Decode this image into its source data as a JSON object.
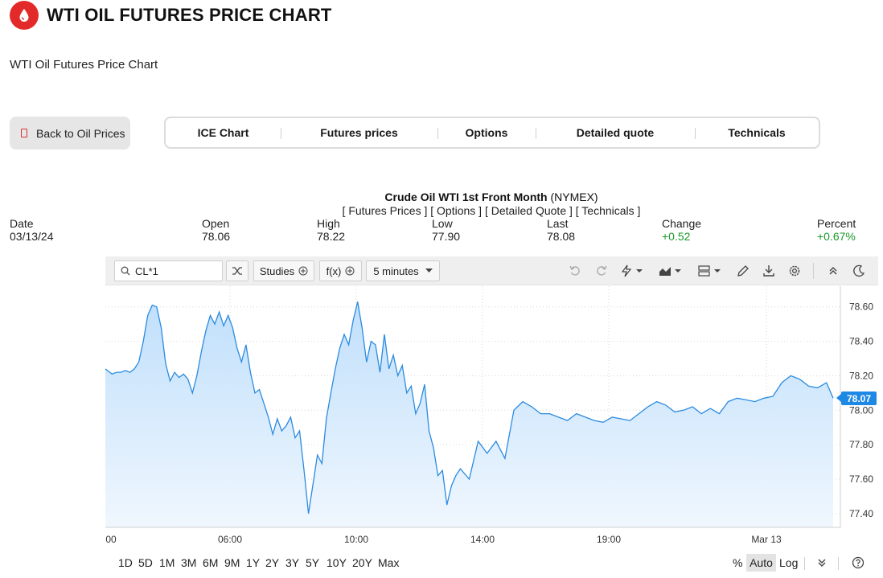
{
  "header": {
    "title": "WTI OIL FUTURES PRICE CHART",
    "subtitle": "WTI Oil Futures Price Chart",
    "logo_icon": "oil-drop-icon"
  },
  "back_button": {
    "label": "Back to Oil Prices",
    "icon": "document-icon"
  },
  "tabs": [
    {
      "label": "ICE Chart"
    },
    {
      "label": "Futures prices"
    },
    {
      "label": "Options"
    },
    {
      "label": "Detailed quote"
    },
    {
      "label": "Technicals"
    }
  ],
  "instrument": {
    "name": "Crude Oil WTI 1st Front Month",
    "exchange": "(NYMEX)",
    "links": "[ Futures Prices ] [ Options ] [ Detailed Quote ] [ Technicals ]"
  },
  "quote": {
    "date_label": "Date",
    "date": "03/13/24",
    "open_label": "Open",
    "open": "78.06",
    "high_label": "High",
    "high": "78.22",
    "low_label": "Low",
    "low": "77.90",
    "last_label": "Last",
    "last": "78.08",
    "change_label": "Change",
    "change": "+0.52",
    "percent_label": "Percent",
    "percent": "+0.67%"
  },
  "toolbar": {
    "symbol": "CL*1",
    "studies_label": "Studies",
    "fx_label": "f(x)",
    "interval_label": "5 minutes"
  },
  "colors": {
    "accent": "#1e88e5",
    "brand": "#e32a2a",
    "positive": "#1a9a2a"
  },
  "chart_data": {
    "type": "area",
    "title": "",
    "xlabel": "",
    "ylabel": "",
    "ylim": [
      77.32,
      78.72
    ],
    "y_ticks": [
      "78.60",
      "78.40",
      "78.20",
      "78.00",
      "77.80",
      "77.60",
      "77.40"
    ],
    "x_ticks": [
      "00",
      "06:00",
      "10:00",
      "14:00",
      "19:00",
      "Mar 13"
    ],
    "last_value": "78.07",
    "x": [
      0,
      0.3,
      0.5,
      0.7,
      0.9,
      1.1,
      1.3,
      1.5,
      1.7,
      1.9,
      2.1,
      2.3,
      2.5,
      2.7,
      2.9,
      3.1,
      3.3,
      3.5,
      3.7,
      3.9,
      4.1,
      4.3,
      4.5,
      4.7,
      4.9,
      5.1,
      5.3,
      5.5,
      5.7,
      5.9,
      6.1,
      6.3,
      6.5,
      6.7,
      6.9,
      7.1,
      7.3,
      7.5,
      7.7,
      7.9,
      8.1,
      8.3,
      8.5,
      8.7,
      8.9,
      9.1,
      9.3,
      9.5,
      9.7,
      9.9,
      10.1,
      10.3,
      10.5,
      10.7,
      10.9,
      11.1,
      11.3,
      11.5,
      11.7,
      11.9,
      12.1,
      12.3,
      12.5,
      12.7,
      12.9,
      13.1,
      13.3,
      13.5,
      13.7,
      13.9,
      14.1,
      14.3,
      14.5,
      14.7,
      14.9,
      15.1,
      15.3,
      15.5,
      15.7,
      15.9,
      16.3,
      16.7,
      17.1,
      17.5,
      17.9,
      18.3,
      18.7,
      19.1,
      19.5,
      19.9,
      20.3,
      20.7,
      21.1,
      21.5,
      21.9,
      22.3,
      22.7,
      23.1,
      23.5,
      23.9,
      24.3,
      24.7,
      25.1,
      25.5,
      25.9,
      26.3,
      26.7,
      27.1,
      27.5,
      27.9,
      28.3,
      28.7,
      29.1,
      29.5,
      29.9,
      30.3,
      30.7,
      31.1,
      31.5,
      31.9,
      32.3,
      32.6
    ],
    "values": [
      78.24,
      78.21,
      78.22,
      78.22,
      78.23,
      78.22,
      78.24,
      78.28,
      78.4,
      78.55,
      78.61,
      78.6,
      78.48,
      78.27,
      78.17,
      78.22,
      78.19,
      78.21,
      78.18,
      78.1,
      78.2,
      78.34,
      78.46,
      78.55,
      78.5,
      78.57,
      78.49,
      78.55,
      78.48,
      78.36,
      78.28,
      78.38,
      78.22,
      78.1,
      78.12,
      78.04,
      77.96,
      77.86,
      77.95,
      77.88,
      77.91,
      77.96,
      77.84,
      77.88,
      77.65,
      77.4,
      77.57,
      77.74,
      77.69,
      77.95,
      78.1,
      78.24,
      78.36,
      78.44,
      78.38,
      78.52,
      78.63,
      78.48,
      78.28,
      78.4,
      78.38,
      78.22,
      78.44,
      78.24,
      78.32,
      78.2,
      78.26,
      78.1,
      78.14,
      77.98,
      78.04,
      78.15,
      77.88,
      77.78,
      77.62,
      77.65,
      77.45,
      77.56,
      77.62,
      77.66,
      77.6,
      77.82,
      77.75,
      77.82,
      77.72,
      78.0,
      78.05,
      78.02,
      77.98,
      77.98,
      77.96,
      77.94,
      77.98,
      77.96,
      77.94,
      77.93,
      77.96,
      77.95,
      77.94,
      77.98,
      78.02,
      78.05,
      78.03,
      77.99,
      78.0,
      78.02,
      77.98,
      78.01,
      77.98,
      78.05,
      78.07,
      78.06,
      78.05,
      78.07,
      78.08,
      78.16,
      78.2,
      78.18,
      78.14,
      78.13,
      78.16,
      78.07
    ]
  },
  "range_bar": {
    "ranges": [
      "1D",
      "5D",
      "1M",
      "3M",
      "6M",
      "9M",
      "1Y",
      "2Y",
      "3Y",
      "5Y",
      "10Y",
      "20Y",
      "Max"
    ],
    "percent_label": "%",
    "auto_label": "Auto",
    "log_label": "Log"
  }
}
